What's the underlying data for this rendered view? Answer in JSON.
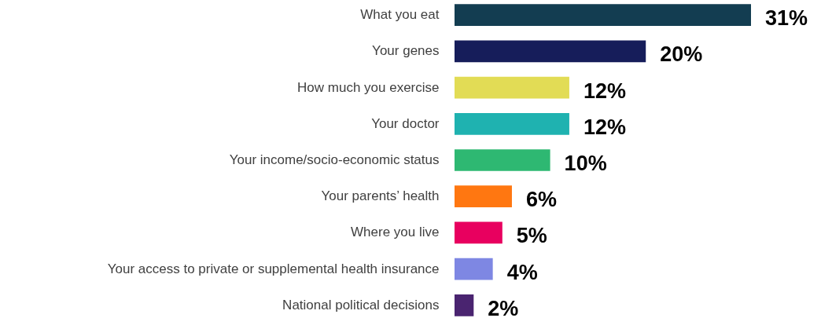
{
  "chart_data": {
    "type": "bar",
    "orientation": "horizontal",
    "categories": [
      "What you eat",
      "Your genes",
      "How much you exercise",
      "Your doctor",
      "Your income/socio-economic status",
      "Your parents’ health",
      "Where you live",
      "Your access to private or supplemental health insurance",
      "National political decisions"
    ],
    "values": [
      31,
      20,
      12,
      12,
      10,
      6,
      5,
      4,
      2
    ],
    "colors": [
      "#133d51",
      "#161d5a",
      "#e2dc55",
      "#1fb2b0",
      "#2eb872",
      "#ff7711",
      "#e8005f",
      "#7e87e3",
      "#4a2470"
    ],
    "value_labels": [
      "31%",
      "20%",
      "12%",
      "12%",
      "10%",
      "6%",
      "5%",
      "4%",
      "2%"
    ]
  }
}
